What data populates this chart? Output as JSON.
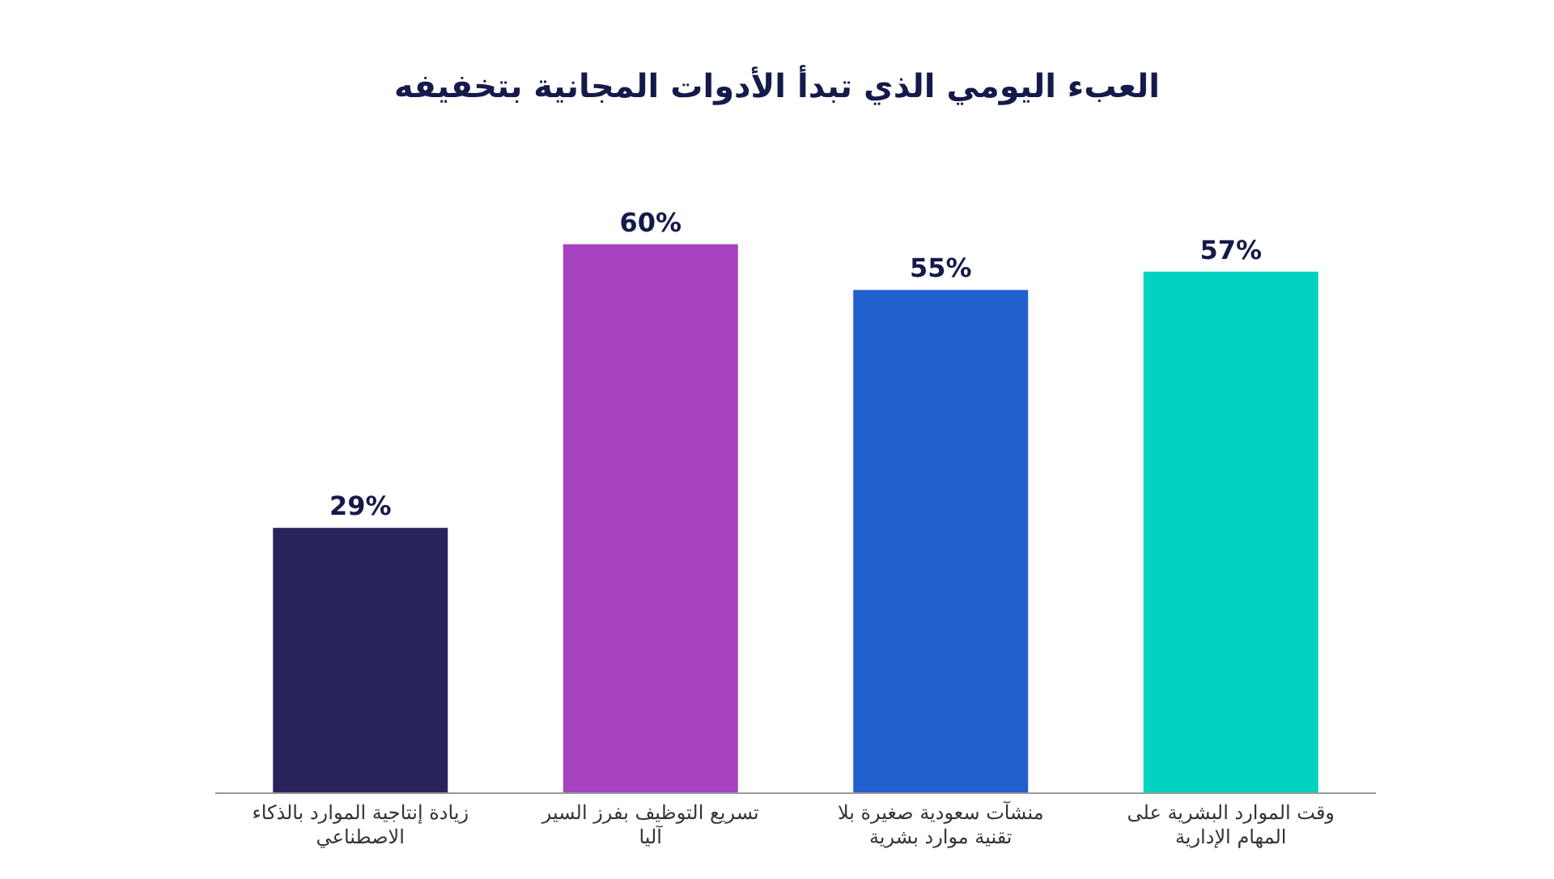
{
  "chart_data": {
    "type": "bar",
    "title": "العبء اليومي الذي تبدأ الأدوات المجانية بتخفيفه",
    "categories": [
      "زيادة إنتاجية الموارد بالذكاء الاصطناعي",
      "تسريع التوظيف بفرز السير آليا",
      "منشآت سعودية صغيرة بلا تقنية موارد بشرية",
      "وقت الموارد البشرية على المهام الإدارية"
    ],
    "values": [
      29,
      60,
      55,
      57
    ],
    "value_labels": [
      "29%",
      "60%",
      "55%",
      "57%"
    ],
    "colors": [
      "#29235c",
      "#a742c0",
      "#2160cd",
      "#00d4c0"
    ]
  }
}
